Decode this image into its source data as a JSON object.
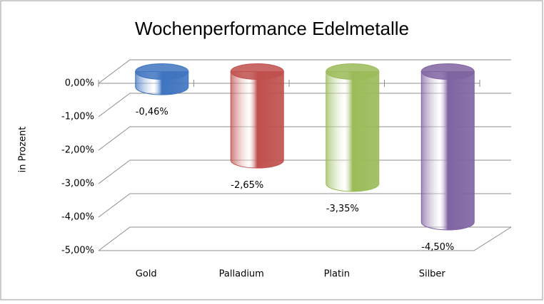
{
  "chart_data": {
    "type": "bar3d",
    "title": "Wochenperformance Edelmetalle",
    "y_label": "in Prozent",
    "categories": [
      "Gold",
      "Palladium",
      "Platin",
      "Silber"
    ],
    "values": [
      -0.46,
      -2.65,
      -3.35,
      -4.5
    ],
    "value_labels": [
      "-0,46%",
      "-2,65%",
      "-3,35%",
      "-4,50%"
    ],
    "colors": [
      "#3f74c0",
      "#c0504d",
      "#9bbb59",
      "#8064a2"
    ],
    "ylim": [
      -5,
      0
    ],
    "yticks": [
      {
        "value": 0,
        "label": "0,00%"
      },
      {
        "value": -1,
        "label": "-1,00%"
      },
      {
        "value": -2,
        "label": "-2,00%"
      },
      {
        "value": -3,
        "label": "-3,00%"
      },
      {
        "value": -4,
        "label": "-4,00%"
      },
      {
        "value": -5,
        "label": "-5,00%"
      }
    ],
    "grid": true
  }
}
